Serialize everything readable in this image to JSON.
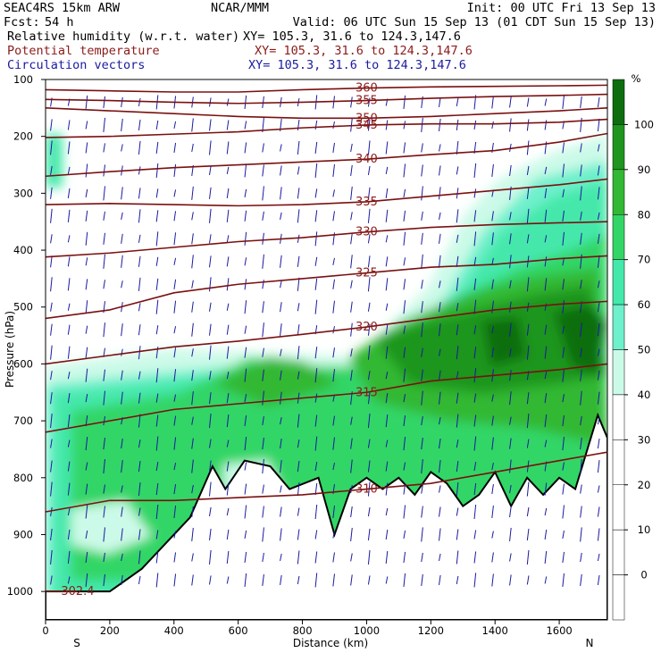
{
  "header": {
    "model": "SEAC4RS 15km ARW",
    "org": "NCAR/MMM",
    "init": "Init: 00 UTC Fri 13 Sep 13",
    "fcst_label": "Fcst:",
    "fcst_value": "54 h",
    "valid": "Valid: 06 UTC Sun 15 Sep 13 (01 CDT Sun 15 Sep 13)",
    "fields": [
      {
        "name": "Relative humidity (w.r.t. water)",
        "xy": "XY= 105.3, 31.6 to 124.3,147.6",
        "color": "#000000"
      },
      {
        "name": "Potential temperature",
        "xy": "XY= 105.3, 31.6 to 124.3,147.6",
        "color": "#8b1a1a"
      },
      {
        "name": "Circulation vectors",
        "xy": "XY= 105.3, 31.6 to 124.3,147.6",
        "color": "#1a1aa0"
      }
    ]
  },
  "chart_data": {
    "type": "cross-section",
    "xlabel": "Distance (km)",
    "ylabel": "Pressure (hPa)",
    "xlim": [
      0,
      1750
    ],
    "ylim": [
      1050,
      100
    ],
    "x_ticks": [
      0,
      200,
      400,
      600,
      800,
      1000,
      1200,
      1400,
      1600
    ],
    "y_ticks": [
      100,
      200,
      300,
      400,
      500,
      600,
      700,
      800,
      900,
      1000
    ],
    "endpoint_labels": {
      "left": "S",
      "right": "N"
    },
    "colorbar": {
      "unit": "%",
      "ticks": [
        0,
        10,
        20,
        30,
        40,
        50,
        60,
        70,
        80,
        90,
        100
      ],
      "colors": [
        "#ffffff",
        "#ffffff",
        "#ffffff",
        "#ffffff",
        "#ffffff",
        "#ccfae8",
        "#6ef0cc",
        "#44e8aa",
        "#33d666",
        "#33b833",
        "#1e961e",
        "#0e6e0e"
      ]
    },
    "theta_contours": [
      {
        "label": "360",
        "points": [
          [
            0,
            118
          ],
          [
            200,
            120
          ],
          [
            400,
            122
          ],
          [
            600,
            122
          ],
          [
            800,
            118
          ],
          [
            1000,
            115
          ],
          [
            1200,
            113
          ],
          [
            1400,
            112
          ],
          [
            1600,
            111
          ],
          [
            1750,
            110
          ]
        ]
      },
      {
        "label": "355",
        "points": [
          [
            0,
            135
          ],
          [
            200,
            137
          ],
          [
            400,
            140
          ],
          [
            600,
            142
          ],
          [
            800,
            140
          ],
          [
            1000,
            137
          ],
          [
            1200,
            133
          ],
          [
            1400,
            130
          ],
          [
            1600,
            128
          ],
          [
            1750,
            126
          ]
        ]
      },
      {
        "label": "350",
        "points": [
          [
            0,
            150
          ],
          [
            200,
            155
          ],
          [
            400,
            160
          ],
          [
            600,
            165
          ],
          [
            800,
            168
          ],
          [
            1000,
            168
          ],
          [
            1200,
            165
          ],
          [
            1400,
            160
          ],
          [
            1600,
            155
          ],
          [
            1750,
            150
          ]
        ]
      },
      {
        "label": "345",
        "points": [
          [
            0,
            202
          ],
          [
            200,
            200
          ],
          [
            400,
            196
          ],
          [
            600,
            192
          ],
          [
            800,
            185
          ],
          [
            1000,
            180
          ],
          [
            1200,
            178
          ],
          [
            1400,
            178
          ],
          [
            1600,
            175
          ],
          [
            1750,
            170
          ]
        ]
      },
      {
        "label": "340",
        "points": [
          [
            0,
            270
          ],
          [
            200,
            262
          ],
          [
            400,
            255
          ],
          [
            600,
            250
          ],
          [
            800,
            245
          ],
          [
            1000,
            240
          ],
          [
            1200,
            232
          ],
          [
            1400,
            225
          ],
          [
            1600,
            210
          ],
          [
            1750,
            195
          ]
        ]
      },
      {
        "label": "335",
        "points": [
          [
            0,
            320
          ],
          [
            200,
            318
          ],
          [
            400,
            320
          ],
          [
            600,
            322
          ],
          [
            800,
            320
          ],
          [
            1000,
            315
          ],
          [
            1200,
            305
          ],
          [
            1400,
            295
          ],
          [
            1600,
            285
          ],
          [
            1750,
            275
          ]
        ]
      },
      {
        "label": "330",
        "points": [
          [
            0,
            412
          ],
          [
            200,
            405
          ],
          [
            400,
            395
          ],
          [
            600,
            385
          ],
          [
            800,
            378
          ],
          [
            1000,
            368
          ],
          [
            1200,
            360
          ],
          [
            1400,
            355
          ],
          [
            1600,
            352
          ],
          [
            1750,
            350
          ]
        ]
      },
      {
        "label": "325",
        "points": [
          [
            0,
            520
          ],
          [
            200,
            505
          ],
          [
            400,
            475
          ],
          [
            600,
            460
          ],
          [
            800,
            450
          ],
          [
            1000,
            440
          ],
          [
            1200,
            430
          ],
          [
            1400,
            425
          ],
          [
            1600,
            415
          ],
          [
            1750,
            410
          ]
        ]
      },
      {
        "label": "320",
        "points": [
          [
            0,
            600
          ],
          [
            200,
            585
          ],
          [
            400,
            570
          ],
          [
            600,
            560
          ],
          [
            800,
            548
          ],
          [
            1000,
            535
          ],
          [
            1200,
            520
          ],
          [
            1400,
            505
          ],
          [
            1600,
            495
          ],
          [
            1750,
            490
          ]
        ]
      },
      {
        "label": "315",
        "points": [
          [
            0,
            720
          ],
          [
            200,
            700
          ],
          [
            400,
            680
          ],
          [
            600,
            670
          ],
          [
            800,
            660
          ],
          [
            1000,
            650
          ],
          [
            1200,
            630
          ],
          [
            1400,
            620
          ],
          [
            1600,
            610
          ],
          [
            1750,
            600
          ]
        ]
      },
      {
        "label": "310",
        "points": [
          [
            0,
            860
          ],
          [
            200,
            840
          ],
          [
            400,
            840
          ],
          [
            600,
            835
          ],
          [
            800,
            830
          ],
          [
            1000,
            820
          ],
          [
            1200,
            810
          ],
          [
            1400,
            790
          ],
          [
            1600,
            770
          ],
          [
            1750,
            755
          ]
        ]
      },
      {
        "label": "302.4",
        "points": [
          [
            0,
            1000
          ],
          [
            100,
            1000
          ]
        ]
      }
    ],
    "terrain": [
      [
        0,
        1000
      ],
      [
        200,
        1000
      ],
      [
        300,
        960
      ],
      [
        450,
        870
      ],
      [
        520,
        780
      ],
      [
        560,
        820
      ],
      [
        620,
        770
      ],
      [
        700,
        780
      ],
      [
        760,
        820
      ],
      [
        850,
        800
      ],
      [
        900,
        900
      ],
      [
        950,
        820
      ],
      [
        1000,
        800
      ],
      [
        1050,
        820
      ],
      [
        1100,
        800
      ],
      [
        1150,
        830
      ],
      [
        1200,
        790
      ],
      [
        1250,
        810
      ],
      [
        1300,
        850
      ],
      [
        1350,
        830
      ],
      [
        1400,
        790
      ],
      [
        1450,
        850
      ],
      [
        1500,
        800
      ],
      [
        1550,
        830
      ],
      [
        1600,
        800
      ],
      [
        1650,
        820
      ],
      [
        1720,
        690
      ],
      [
        1750,
        730
      ]
    ]
  }
}
